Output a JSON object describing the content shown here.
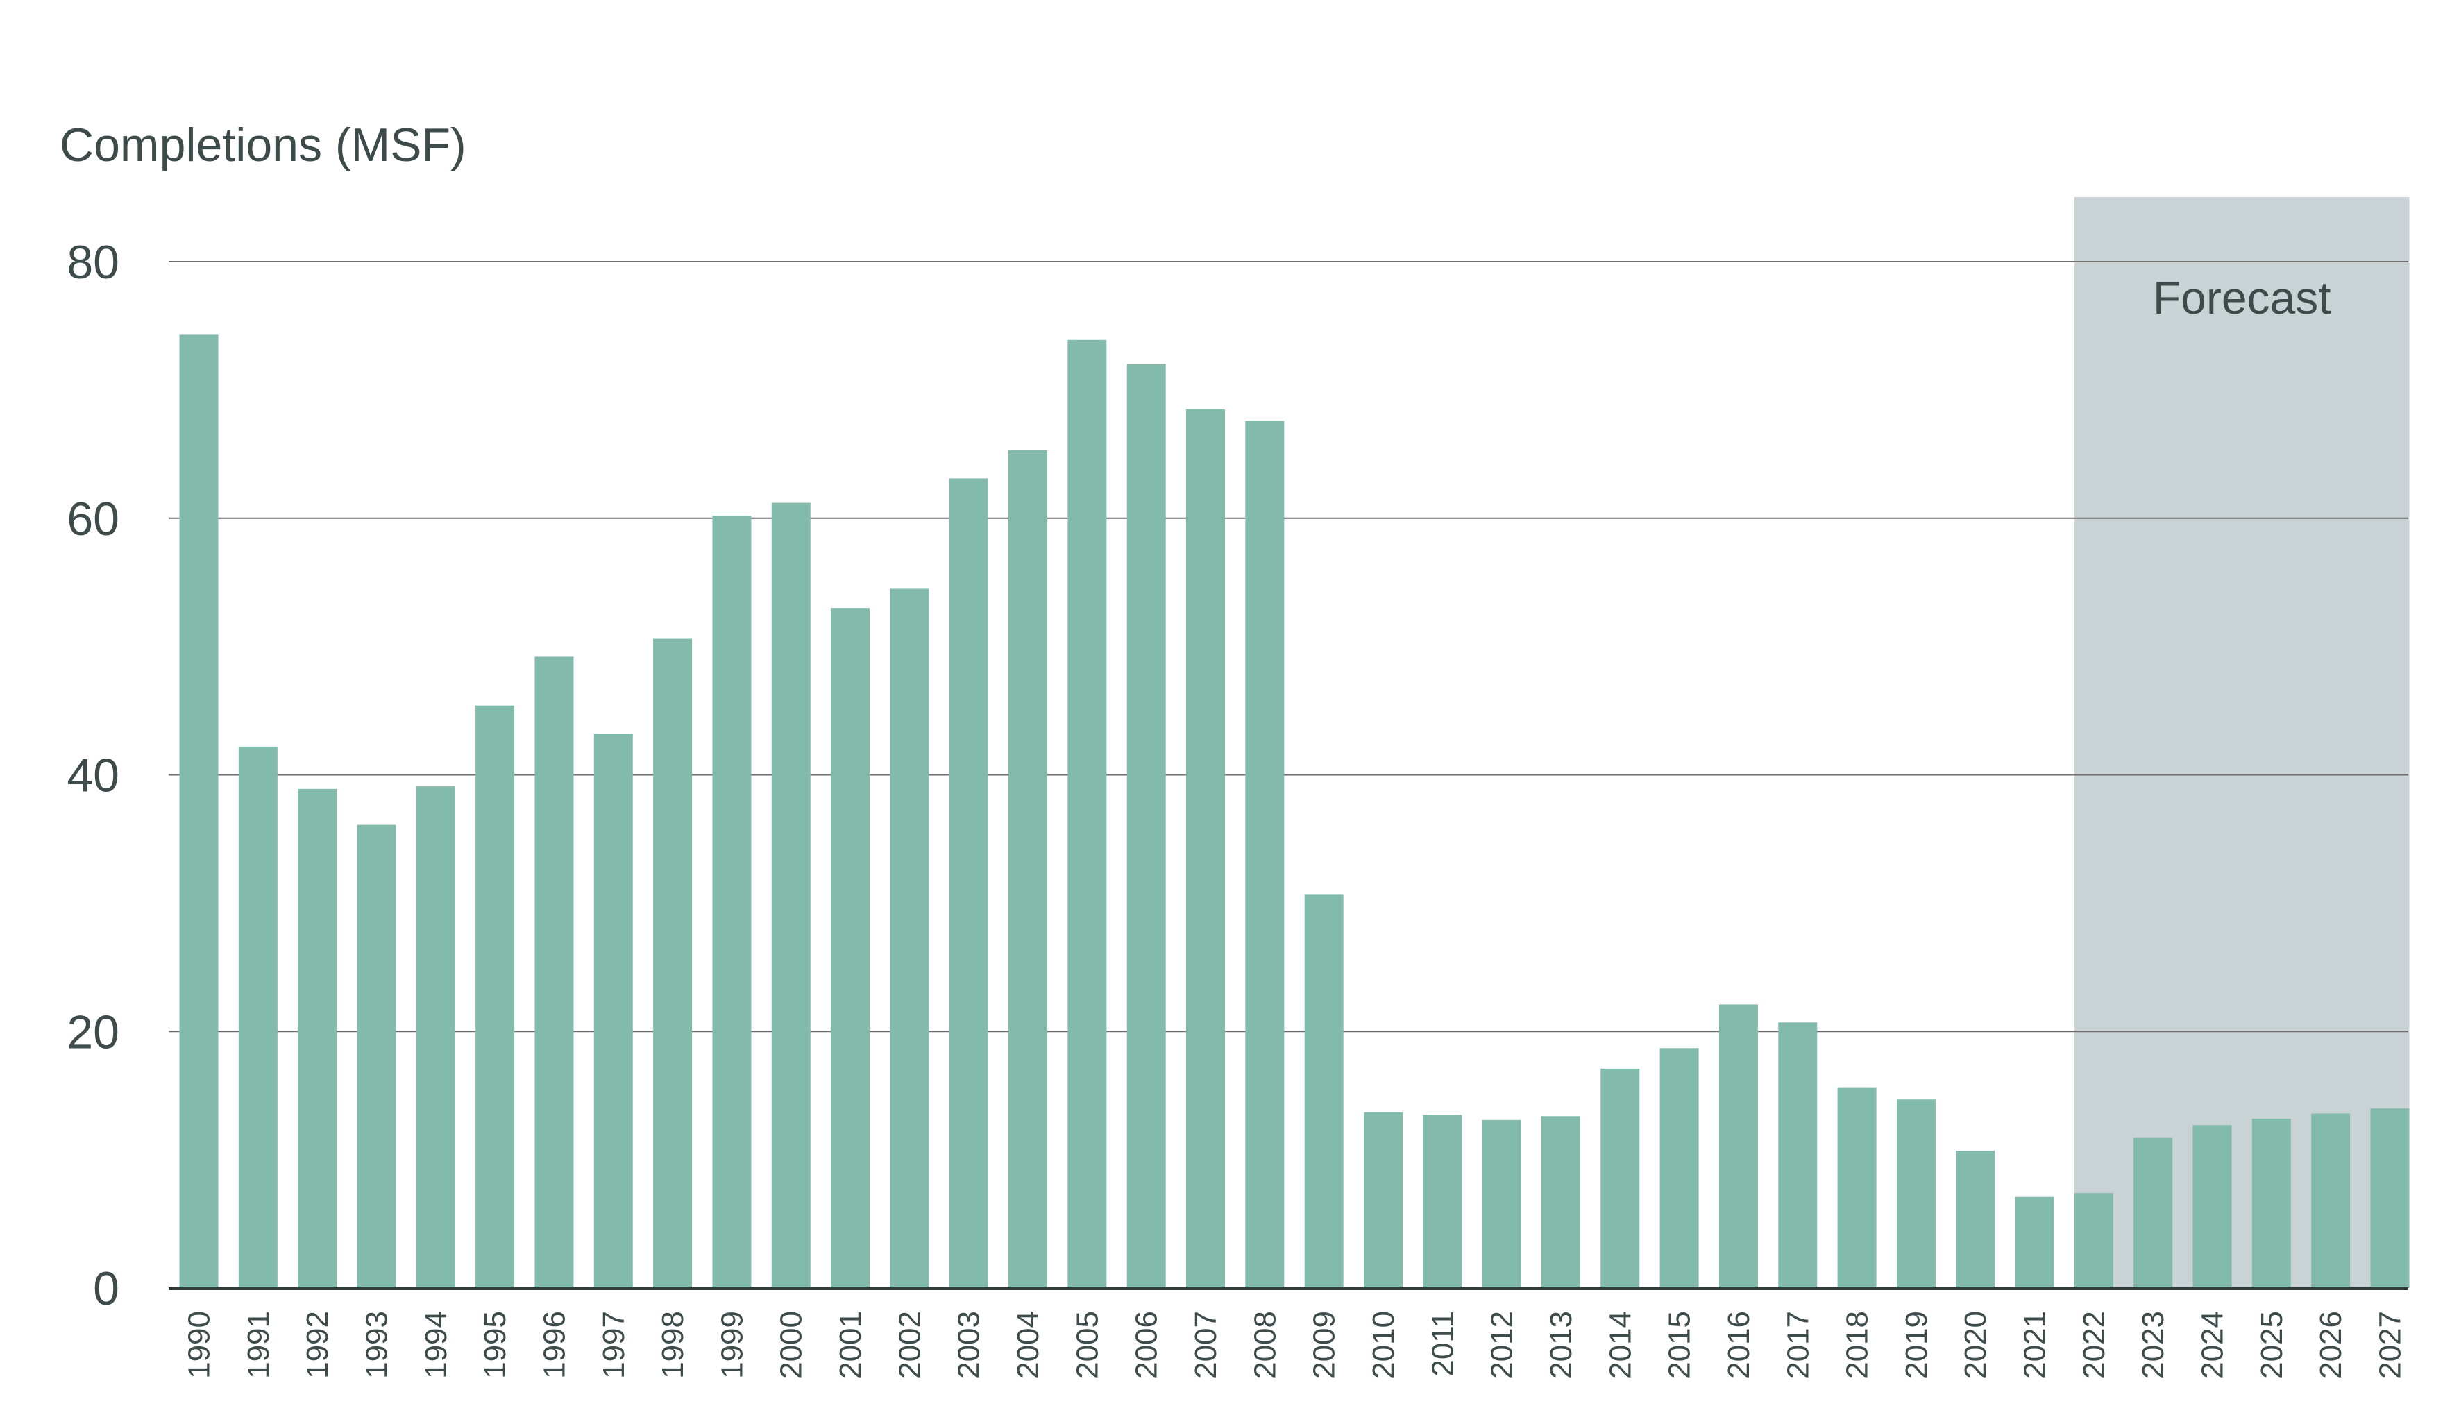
{
  "colors": {
    "bar": "#82baac",
    "forecast_band": "#c9d2d4",
    "gridline": "#6e6e6e",
    "axis": "#2f3a3a",
    "text": "#3e4b4b",
    "background": "#ffffff"
  },
  "chart_data": {
    "type": "bar",
    "title": "",
    "xlabel": "",
    "ylabel": "Completions (MSF)",
    "ylim": [
      0,
      80
    ],
    "yticks": [
      0,
      20,
      40,
      60,
      80
    ],
    "grid": "horizontal",
    "categories": [
      "1990",
      "1991",
      "1992",
      "1993",
      "1994",
      "1995",
      "1996",
      "1997",
      "1998",
      "1999",
      "2000",
      "2001",
      "2002",
      "2003",
      "2004",
      "2005",
      "2006",
      "2007",
      "2008",
      "2009",
      "2010",
      "2011",
      "2012",
      "2013",
      "2014",
      "2015",
      "2016",
      "2017",
      "2018",
      "2019",
      "2020",
      "2021",
      "2022",
      "2023",
      "2024",
      "2025",
      "2026",
      "2027"
    ],
    "values": [
      74.3,
      42.2,
      38.9,
      36.1,
      39.1,
      45.4,
      49.2,
      43.2,
      50.6,
      60.2,
      61.2,
      53.0,
      54.5,
      63.1,
      65.3,
      73.9,
      72.0,
      68.5,
      67.6,
      30.7,
      13.7,
      13.5,
      13.1,
      13.4,
      17.1,
      18.7,
      22.1,
      20.7,
      15.6,
      14.7,
      10.7,
      7.1,
      7.4,
      11.7,
      12.7,
      13.2,
      13.6,
      14.0
    ],
    "forecast": {
      "label": "Forecast",
      "start_category": "2022",
      "end_category": "2027"
    }
  }
}
